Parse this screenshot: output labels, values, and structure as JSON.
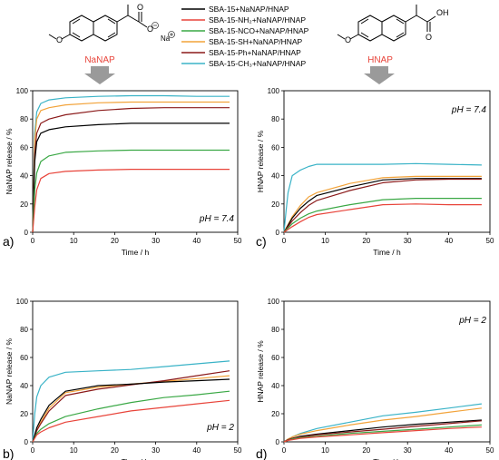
{
  "legend": {
    "entries": [
      {
        "label": "SBA-15+NaNAP/HNAP",
        "color": "#000000"
      },
      {
        "label": "SBA-15-NH₂+NaNAP/HNAP",
        "color": "#e8443a"
      },
      {
        "label": "SBA-15-NCO+NaNAP/HNAP",
        "color": "#3aa845"
      },
      {
        "label": "SBA-15-SH+NaNAP/HNAP",
        "color": "#f2a33a"
      },
      {
        "label": "SBA-15-Ph+NaNAP/HNAP",
        "color": "#8b1a1a"
      },
      {
        "label": "SBA-15-CH₃+NaNAP/HNAP",
        "color": "#3ab3c7"
      }
    ]
  },
  "molecules": {
    "left": {
      "name": "NaNAP",
      "na_label": "Na",
      "name_color": "#e8443a"
    },
    "right": {
      "name": "HNAP",
      "oh_label": "OH",
      "o_label": "O",
      "name_color": "#e8443a"
    }
  },
  "chart_data": [
    {
      "panel": "a)",
      "type": "line",
      "annotation": "pH = 7.4",
      "xlabel": "Time / h",
      "ylabel": "NaNAP release / %",
      "xlim": [
        0,
        50
      ],
      "ylim": [
        0,
        100
      ],
      "xticks": [
        0,
        10,
        20,
        30,
        40,
        50
      ],
      "yticks": [
        0,
        20,
        40,
        60,
        80,
        100
      ],
      "series": [
        {
          "color": "#3ab3c7",
          "x": [
            0,
            0.5,
            1,
            2,
            4,
            8,
            16,
            24,
            32,
            40,
            48
          ],
          "y": [
            0,
            70,
            85,
            91,
            93.5,
            95,
            96,
            96.5,
            96.5,
            96,
            96
          ]
        },
        {
          "color": "#f2a33a",
          "x": [
            0,
            0.5,
            1,
            2,
            4,
            8,
            16,
            24,
            32,
            40,
            48
          ],
          "y": [
            0,
            65,
            80,
            86,
            88,
            90,
            91.5,
            92,
            92,
            92,
            92
          ]
        },
        {
          "color": "#8b1a1a",
          "x": [
            0,
            0.5,
            1,
            2,
            4,
            8,
            16,
            24,
            32,
            40,
            48
          ],
          "y": [
            0,
            55,
            70,
            77,
            80,
            83,
            86,
            87.5,
            88,
            88,
            88
          ]
        },
        {
          "color": "#000000",
          "x": [
            0,
            0.5,
            1,
            2,
            4,
            8,
            16,
            24,
            32,
            40,
            48
          ],
          "y": [
            0,
            50,
            64,
            70,
            72.5,
            74.5,
            76,
            77,
            77,
            77,
            77
          ]
        },
        {
          "color": "#3aa845",
          "x": [
            0,
            0.5,
            1,
            2,
            4,
            8,
            16,
            24,
            32,
            40,
            48
          ],
          "y": [
            0,
            30,
            42,
            50,
            54,
            56.5,
            57.5,
            58,
            58,
            58,
            58
          ]
        },
        {
          "color": "#e8443a",
          "x": [
            0,
            0.5,
            1,
            2,
            4,
            8,
            16,
            24,
            32,
            40,
            48
          ],
          "y": [
            0,
            18,
            30,
            38,
            41.5,
            43,
            44,
            44.5,
            44.5,
            44.5,
            44.5
          ]
        }
      ]
    },
    {
      "panel": "b)",
      "type": "line",
      "annotation": "pH = 2",
      "xlabel": "Time / h",
      "ylabel": "NaNAP release / %",
      "xlim": [
        0,
        50
      ],
      "ylim": [
        0,
        100
      ],
      "xticks": [
        0,
        10,
        20,
        30,
        40,
        50
      ],
      "yticks": [
        0,
        20,
        40,
        60,
        80,
        100
      ],
      "series": [
        {
          "color": "#3ab3c7",
          "x": [
            0,
            0.5,
            1,
            2,
            4,
            8,
            16,
            24,
            32,
            40,
            48
          ],
          "y": [
            0,
            20,
            32,
            40,
            46,
            49.5,
            50.5,
            51.5,
            53.5,
            55.5,
            57.5
          ]
        },
        {
          "color": "#f2a33a",
          "x": [
            0,
            0.5,
            1,
            2,
            4,
            8,
            16,
            24,
            32,
            40,
            48
          ],
          "y": [
            0,
            4,
            8,
            14,
            24,
            35,
            39,
            41,
            43,
            45,
            47
          ]
        },
        {
          "color": "#8b1a1a",
          "x": [
            0,
            0.5,
            1,
            2,
            4,
            8,
            16,
            24,
            32,
            40,
            48
          ],
          "y": [
            0,
            4,
            8,
            13,
            22,
            33,
            37.5,
            40.5,
            43.5,
            47,
            50.5
          ]
        },
        {
          "color": "#000000",
          "x": [
            0,
            0.5,
            1,
            2,
            4,
            8,
            16,
            24,
            32,
            40,
            48
          ],
          "y": [
            0,
            5,
            10,
            16,
            26,
            36,
            40,
            41,
            42.5,
            43.5,
            44.5
          ]
        },
        {
          "color": "#3aa845",
          "x": [
            0,
            0.5,
            1,
            2,
            4,
            8,
            16,
            24,
            32,
            40,
            48
          ],
          "y": [
            0,
            3,
            6,
            9,
            13,
            18,
            23.5,
            28,
            31.5,
            33.5,
            36
          ]
        },
        {
          "color": "#e8443a",
          "x": [
            0,
            0.5,
            1,
            2,
            4,
            8,
            16,
            24,
            32,
            40,
            48
          ],
          "y": [
            0,
            2.5,
            5,
            7,
            10,
            14,
            18,
            22,
            24.5,
            27,
            29.5
          ]
        }
      ]
    },
    {
      "panel": "c)",
      "type": "line",
      "annotation": "pH = 7.4",
      "xlabel": "Time / h",
      "ylabel": "HNAP release / %",
      "xlim": [
        0,
        50
      ],
      "ylim": [
        0,
        100
      ],
      "xticks": [
        0,
        10,
        20,
        30,
        40,
        50
      ],
      "yticks": [
        0,
        20,
        40,
        60,
        80,
        100
      ],
      "series": [
        {
          "color": "#3ab3c7",
          "x": [
            0,
            0.5,
            1,
            2,
            4,
            6,
            8,
            16,
            24,
            32,
            40,
            48
          ],
          "y": [
            0,
            15,
            28,
            40,
            44,
            46.5,
            48,
            48,
            48,
            48.5,
            48,
            47.5
          ]
        },
        {
          "color": "#f2a33a",
          "x": [
            0,
            2,
            4,
            6,
            8,
            16,
            24,
            32,
            40,
            48
          ],
          "y": [
            0,
            11,
            19,
            25,
            28,
            34.5,
            38.5,
            39.5,
            39.5,
            39.5
          ]
        },
        {
          "color": "#000000",
          "x": [
            0,
            2,
            4,
            6,
            8,
            16,
            24,
            32,
            40,
            48
          ],
          "y": [
            0,
            10,
            17,
            22,
            26,
            32,
            37,
            38,
            38,
            38
          ]
        },
        {
          "color": "#8b1a1a",
          "x": [
            0,
            2,
            4,
            6,
            8,
            16,
            24,
            32,
            40,
            48
          ],
          "y": [
            0,
            8,
            14,
            19,
            22.5,
            29.5,
            35,
            37,
            37.5,
            37.5
          ]
        },
        {
          "color": "#3aa845",
          "x": [
            0,
            2,
            4,
            6,
            8,
            16,
            24,
            32,
            40,
            48
          ],
          "y": [
            0,
            6,
            10,
            13,
            15,
            19.5,
            23,
            24,
            24,
            24
          ]
        },
        {
          "color": "#e8443a",
          "x": [
            0,
            2,
            4,
            6,
            8,
            16,
            24,
            32,
            40,
            48
          ],
          "y": [
            0,
            4,
            7.5,
            10.5,
            12.5,
            16,
            19.5,
            20,
            19.5,
            19.5
          ]
        }
      ]
    },
    {
      "panel": "d)",
      "type": "line",
      "annotation": "pH = 2",
      "xlabel": "Time / h",
      "ylabel": "HNAP release / %",
      "xlim": [
        0,
        50
      ],
      "ylim": [
        0,
        100
      ],
      "xticks": [
        0,
        10,
        20,
        30,
        40,
        50
      ],
      "yticks": [
        0,
        20,
        40,
        60,
        80,
        100
      ],
      "series": [
        {
          "color": "#3ab3c7",
          "x": [
            0,
            1,
            2,
            4,
            8,
            16,
            24,
            32,
            40,
            48
          ],
          "y": [
            0,
            2,
            3.5,
            6,
            9.5,
            14,
            18.5,
            21,
            24,
            27
          ]
        },
        {
          "color": "#f2a33a",
          "x": [
            0,
            1,
            2,
            4,
            8,
            16,
            24,
            32,
            40,
            48
          ],
          "y": [
            0,
            2,
            3.5,
            5.5,
            8,
            12,
            15.5,
            18,
            21,
            24
          ]
        },
        {
          "color": "#000000",
          "x": [
            0,
            1,
            2,
            4,
            8,
            16,
            24,
            32,
            40,
            48
          ],
          "y": [
            0,
            1.5,
            2.5,
            4,
            5.5,
            8,
            10.5,
            12.5,
            14,
            15.5
          ]
        },
        {
          "color": "#8b1a1a",
          "x": [
            0,
            1,
            2,
            4,
            8,
            16,
            24,
            32,
            40,
            48
          ],
          "y": [
            0,
            1.5,
            2.5,
            3.5,
            5,
            7,
            9,
            11,
            13,
            15
          ]
        },
        {
          "color": "#3aa845",
          "x": [
            0,
            1,
            2,
            4,
            8,
            16,
            24,
            32,
            40,
            48
          ],
          "y": [
            0,
            1,
            2,
            3,
            4,
            6,
            7.5,
            9,
            10.5,
            12
          ]
        },
        {
          "color": "#e8443a",
          "x": [
            0,
            1,
            2,
            4,
            8,
            16,
            24,
            32,
            40,
            48
          ],
          "y": [
            0,
            1,
            1.5,
            2.5,
            3.5,
            5,
            6.5,
            8,
            9.5,
            10.5
          ]
        }
      ]
    }
  ]
}
